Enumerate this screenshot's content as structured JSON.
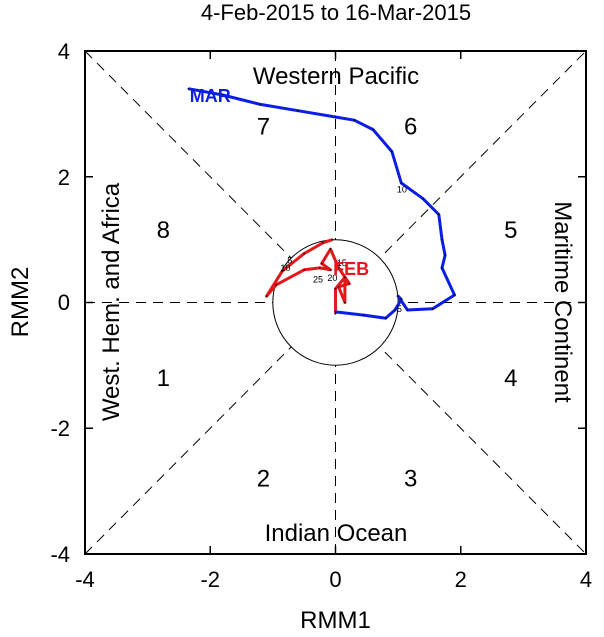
{
  "chart_data": {
    "type": "line",
    "title": "4-Feb-2015 to 16-Mar-2015",
    "xlabel": "RMM1",
    "ylabel": "RMM2",
    "xlim": [
      -4,
      4
    ],
    "ylim": [
      -4,
      4
    ],
    "x_ticks": [
      "-4",
      "-2",
      "0",
      "2",
      "4"
    ],
    "y_ticks": [
      "4",
      "2",
      "0",
      "-2",
      "-4"
    ],
    "regions": {
      "top": "Western Pacific",
      "bottom": "Indian Ocean",
      "left": "West. Hem. and Africa",
      "right": "Maritime Continent"
    },
    "phases": [
      {
        "label": "1",
        "x": -2.75,
        "y": -1.2
      },
      {
        "label": "2",
        "x": -1.15,
        "y": -2.8
      },
      {
        "label": "3",
        "x": 1.2,
        "y": -2.8
      },
      {
        "label": "4",
        "x": 2.8,
        "y": -1.2
      },
      {
        "label": "5",
        "x": 2.8,
        "y": 1.15
      },
      {
        "label": "6",
        "x": 1.2,
        "y": 2.8
      },
      {
        "label": "7",
        "x": -1.15,
        "y": 2.8
      },
      {
        "label": "8",
        "x": -2.75,
        "y": 1.15
      }
    ],
    "series": [
      {
        "name": "FEB",
        "color": "#e8161b",
        "label": {
          "x": 0.25,
          "y": 0.55
        },
        "points": [
          [
            0.0,
            -0.18
          ],
          [
            0.0,
            0.22
          ],
          [
            0.15,
            0.4
          ],
          [
            0.15,
            0.0
          ],
          [
            0.05,
            0.25
          ],
          [
            0.22,
            0.3
          ],
          [
            0.05,
            0.55
          ],
          [
            -0.08,
            0.85
          ],
          [
            -0.22,
            0.62
          ],
          [
            -0.08,
            0.52
          ],
          [
            -0.25,
            0.55
          ],
          [
            -0.5,
            0.52
          ],
          [
            -0.95,
            0.28
          ],
          [
            -1.1,
            0.1
          ],
          [
            -0.85,
            0.5
          ],
          [
            -0.5,
            0.78
          ],
          [
            -0.2,
            0.95
          ],
          [
            -0.05,
            1.0
          ]
        ],
        "day_labels": [
          {
            "text": "5",
            "x": -0.73,
            "y": 0.62
          },
          {
            "text": "10",
            "x": -0.8,
            "y": 0.5
          },
          {
            "text": "25",
            "x": -0.28,
            "y": 0.32
          },
          {
            "text": "20",
            "x": -0.05,
            "y": 0.34
          },
          {
            "text": "15",
            "x": 0.1,
            "y": 0.58
          }
        ]
      },
      {
        "name": "MAR",
        "color": "#0a1ee6",
        "label": {
          "x": -2.0,
          "y": 3.3
        },
        "points": [
          [
            0.0,
            -0.15
          ],
          [
            0.45,
            -0.2
          ],
          [
            0.8,
            -0.25
          ],
          [
            0.95,
            -0.12
          ],
          [
            1.05,
            0.05
          ],
          [
            1.0,
            0.1
          ],
          [
            1.15,
            -0.12
          ],
          [
            1.55,
            -0.1
          ],
          [
            1.9,
            0.12
          ],
          [
            1.7,
            0.55
          ],
          [
            1.75,
            0.75
          ],
          [
            1.7,
            1.0
          ],
          [
            1.65,
            1.4
          ],
          [
            1.4,
            1.65
          ],
          [
            1.05,
            1.9
          ],
          [
            0.9,
            2.4
          ],
          [
            0.6,
            2.75
          ],
          [
            0.3,
            2.9
          ],
          [
            0.0,
            2.95
          ],
          [
            -0.6,
            3.05
          ],
          [
            -1.2,
            3.15
          ],
          [
            -1.8,
            3.3
          ],
          [
            -2.35,
            3.4
          ]
        ],
        "day_labels": [
          {
            "text": "5",
            "x": 1.02,
            "y": -0.15
          },
          {
            "text": "10",
            "x": 1.06,
            "y": 1.75
          }
        ]
      }
    ],
    "amplitude_circle_radius": 1.0,
    "grid": "dashed quadrant and diagonal lines"
  }
}
